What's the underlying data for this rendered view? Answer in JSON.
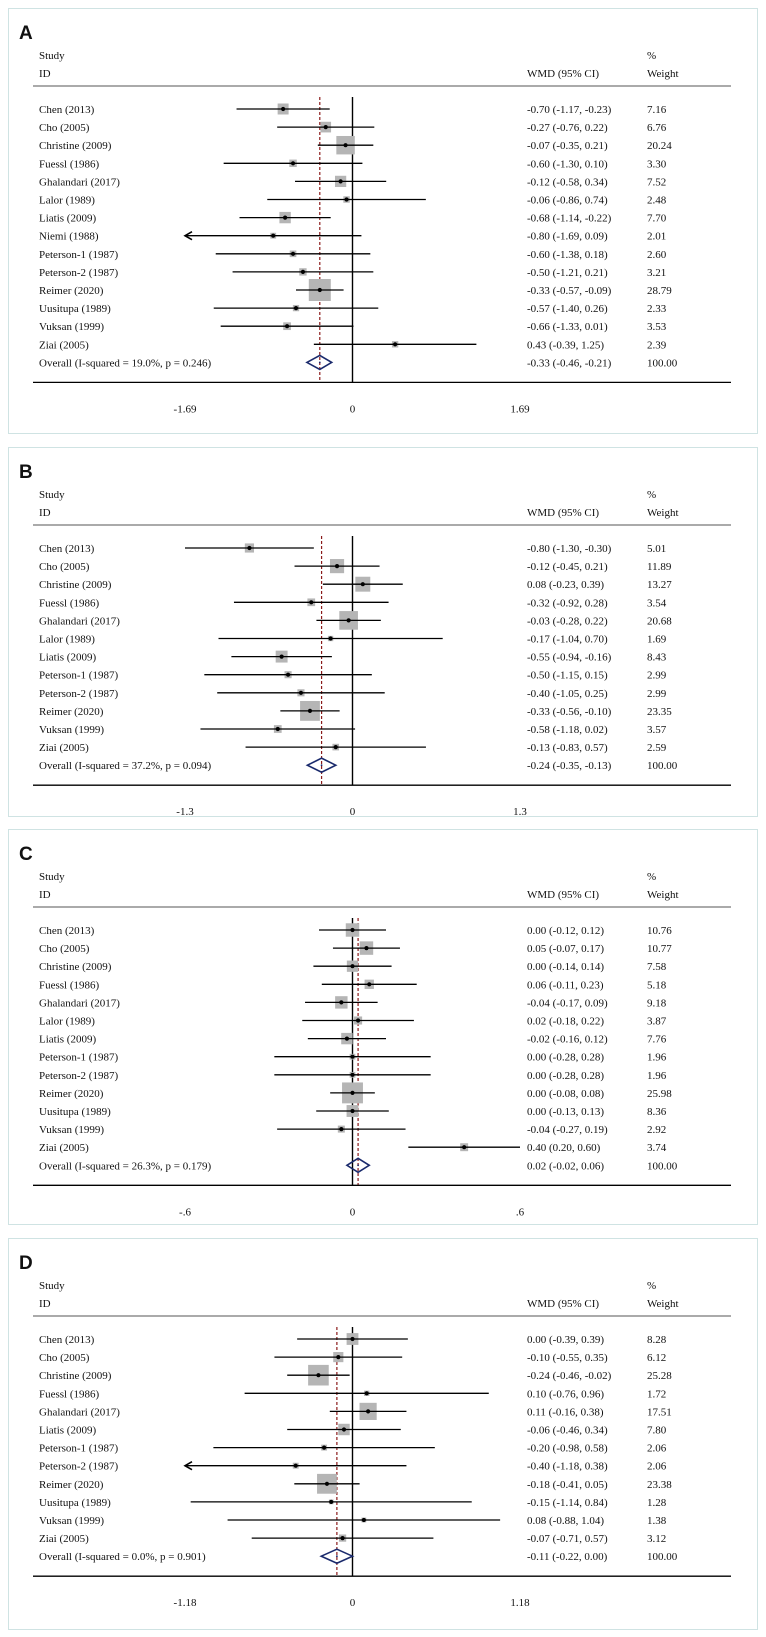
{
  "header": {
    "study_line1": "Study",
    "study_line2": "ID",
    "effect_header": "WMD (95% CI)",
    "weight_line1": "%",
    "weight_line2": "Weight"
  },
  "colors": {
    "box": "#b5b5b5",
    "line": "#000000",
    "diamond": "#1a2a6c",
    "null_line": "#000000",
    "overall_line": "#8b1a1a",
    "panel_border": "#cfe3e3"
  },
  "chart_data": [
    {
      "type": "forest",
      "panel_label": "A",
      "xlim": [
        -1.69,
        1.69
      ],
      "ticks": [
        "-1.69",
        "0",
        "1.69"
      ],
      "tick_values": [
        -1.69,
        0,
        1.69
      ],
      "studies": [
        {
          "id": "Chen (2013)",
          "est": -0.7,
          "lo": -1.17,
          "hi": -0.23,
          "ci": "-0.70 (-1.17, -0.23)",
          "weight": "7.16",
          "w": 7.16
        },
        {
          "id": "Cho (2005)",
          "est": -0.27,
          "lo": -0.76,
          "hi": 0.22,
          "ci": "-0.27 (-0.76, 0.22)",
          "weight": "6.76",
          "w": 6.76
        },
        {
          "id": "Christine (2009)",
          "est": -0.07,
          "lo": -0.35,
          "hi": 0.21,
          "ci": "-0.07 (-0.35, 0.21)",
          "weight": "20.24",
          "w": 20.24
        },
        {
          "id": "Fuessl (1986)",
          "est": -0.6,
          "lo": -1.3,
          "hi": 0.1,
          "ci": "-0.60 (-1.30, 0.10)",
          "weight": "3.30",
          "w": 3.3
        },
        {
          "id": "Ghalandari (2017)",
          "est": -0.12,
          "lo": -0.58,
          "hi": 0.34,
          "ci": "-0.12 (-0.58, 0.34)",
          "weight": "7.52",
          "w": 7.52
        },
        {
          "id": "Lalor (1989)",
          "est": -0.06,
          "lo": -0.86,
          "hi": 0.74,
          "ci": "-0.06 (-0.86, 0.74)",
          "weight": "2.48",
          "w": 2.48
        },
        {
          "id": "Liatis (2009)",
          "est": -0.68,
          "lo": -1.14,
          "hi": -0.22,
          "ci": "-0.68 (-1.14, -0.22)",
          "weight": "7.70",
          "w": 7.7
        },
        {
          "id": "Niemi (1988)",
          "est": -0.8,
          "lo": -1.69,
          "hi": 0.09,
          "ci": "-0.80 (-1.69, 0.09)",
          "weight": "2.01",
          "w": 2.01,
          "arrow_left": true
        },
        {
          "id": "Peterson-1 (1987)",
          "est": -0.6,
          "lo": -1.38,
          "hi": 0.18,
          "ci": "-0.60 (-1.38, 0.18)",
          "weight": "2.60",
          "w": 2.6
        },
        {
          "id": "Peterson-2 (1987)",
          "est": -0.5,
          "lo": -1.21,
          "hi": 0.21,
          "ci": "-0.50 (-1.21, 0.21)",
          "weight": "3.21",
          "w": 3.21
        },
        {
          "id": "Reimer (2020)",
          "est": -0.33,
          "lo": -0.57,
          "hi": -0.09,
          "ci": "-0.33 (-0.57, -0.09)",
          "weight": "28.79",
          "w": 28.79
        },
        {
          "id": "Uusitupa (1989)",
          "est": -0.57,
          "lo": -1.4,
          "hi": 0.26,
          "ci": "-0.57 (-1.40, 0.26)",
          "weight": "2.33",
          "w": 2.33
        },
        {
          "id": "Vuksan (1999)",
          "est": -0.66,
          "lo": -1.33,
          "hi": 0.01,
          "ci": "-0.66 (-1.33, 0.01)",
          "weight": "3.53",
          "w": 3.53
        },
        {
          "id": "Ziai (2005)",
          "est": 0.43,
          "lo": -0.39,
          "hi": 1.25,
          "ci": "0.43 (-0.39, 1.25)",
          "weight": "2.39",
          "w": 2.39
        }
      ],
      "overall": {
        "label": "Overall (I-squared = 19.0%, p = 0.246)",
        "est": -0.33,
        "lo": -0.46,
        "hi": -0.21,
        "ci": "-0.33 (-0.46, -0.21)",
        "weight": "100.00"
      }
    },
    {
      "type": "forest",
      "panel_label": "B",
      "xlim": [
        -1.3,
        1.3
      ],
      "ticks": [
        "-1.3",
        "0",
        "1.3"
      ],
      "tick_values": [
        -1.3,
        0,
        1.3
      ],
      "studies": [
        {
          "id": "Chen (2013)",
          "est": -0.8,
          "lo": -1.3,
          "hi": -0.3,
          "ci": "-0.80 (-1.30, -0.30)",
          "weight": "5.01",
          "w": 5.01
        },
        {
          "id": "Cho (2005)",
          "est": -0.12,
          "lo": -0.45,
          "hi": 0.21,
          "ci": "-0.12 (-0.45, 0.21)",
          "weight": "11.89",
          "w": 11.89
        },
        {
          "id": "Christine (2009)",
          "est": 0.08,
          "lo": -0.23,
          "hi": 0.39,
          "ci": "0.08 (-0.23, 0.39)",
          "weight": "13.27",
          "w": 13.27
        },
        {
          "id": "Fuessl (1986)",
          "est": -0.32,
          "lo": -0.92,
          "hi": 0.28,
          "ci": "-0.32 (-0.92, 0.28)",
          "weight": "3.54",
          "w": 3.54
        },
        {
          "id": "Ghalandari (2017)",
          "est": -0.03,
          "lo": -0.28,
          "hi": 0.22,
          "ci": "-0.03 (-0.28, 0.22)",
          "weight": "20.68",
          "w": 20.68
        },
        {
          "id": "Lalor (1989)",
          "est": -0.17,
          "lo": -1.04,
          "hi": 0.7,
          "ci": "-0.17 (-1.04, 0.70)",
          "weight": "1.69",
          "w": 1.69
        },
        {
          "id": "Liatis (2009)",
          "est": -0.55,
          "lo": -0.94,
          "hi": -0.16,
          "ci": "-0.55 (-0.94, -0.16)",
          "weight": "8.43",
          "w": 8.43
        },
        {
          "id": "Peterson-1 (1987)",
          "est": -0.5,
          "lo": -1.15,
          "hi": 0.15,
          "ci": "-0.50 (-1.15, 0.15)",
          "weight": "2.99",
          "w": 2.99
        },
        {
          "id": "Peterson-2 (1987)",
          "est": -0.4,
          "lo": -1.05,
          "hi": 0.25,
          "ci": "-0.40 (-1.05, 0.25)",
          "weight": "2.99",
          "w": 2.99
        },
        {
          "id": "Reimer (2020)",
          "est": -0.33,
          "lo": -0.56,
          "hi": -0.1,
          "ci": "-0.33 (-0.56, -0.10)",
          "weight": "23.35",
          "w": 23.35
        },
        {
          "id": "Vuksan (1999)",
          "est": -0.58,
          "lo": -1.18,
          "hi": 0.02,
          "ci": "-0.58 (-1.18, 0.02)",
          "weight": "3.57",
          "w": 3.57
        },
        {
          "id": "Ziai (2005)",
          "est": -0.13,
          "lo": -0.83,
          "hi": 0.57,
          "ci": "-0.13 (-0.83, 0.57)",
          "weight": "2.59",
          "w": 2.59
        }
      ],
      "overall": {
        "label": "Overall (I-squared = 37.2%, p = 0.094)",
        "est": -0.24,
        "lo": -0.35,
        "hi": -0.13,
        "ci": "-0.24 (-0.35, -0.13)",
        "weight": "100.00"
      }
    },
    {
      "type": "forest",
      "panel_label": "C",
      "xlim": [
        -0.6,
        0.6
      ],
      "ticks": [
        "-.6",
        "0",
        ".6"
      ],
      "tick_values": [
        -0.6,
        0,
        0.6
      ],
      "studies": [
        {
          "id": "Chen (2013)",
          "est": 0.0,
          "lo": -0.12,
          "hi": 0.12,
          "ci": "0.00 (-0.12, 0.12)",
          "weight": "10.76",
          "w": 10.76
        },
        {
          "id": "Cho (2005)",
          "est": 0.05,
          "lo": -0.07,
          "hi": 0.17,
          "ci": "0.05 (-0.07, 0.17)",
          "weight": "10.77",
          "w": 10.77
        },
        {
          "id": "Christine (2009)",
          "est": 0.0,
          "lo": -0.14,
          "hi": 0.14,
          "ci": "0.00 (-0.14, 0.14)",
          "weight": "7.58",
          "w": 7.58
        },
        {
          "id": "Fuessl (1986)",
          "est": 0.06,
          "lo": -0.11,
          "hi": 0.23,
          "ci": "0.06 (-0.11, 0.23)",
          "weight": "5.18",
          "w": 5.18
        },
        {
          "id": "Ghalandari (2017)",
          "est": -0.04,
          "lo": -0.17,
          "hi": 0.09,
          "ci": "-0.04 (-0.17, 0.09)",
          "weight": "9.18",
          "w": 9.18
        },
        {
          "id": "Lalor (1989)",
          "est": 0.02,
          "lo": -0.18,
          "hi": 0.22,
          "ci": "0.02 (-0.18, 0.22)",
          "weight": "3.87",
          "w": 3.87
        },
        {
          "id": "Liatis (2009)",
          "est": -0.02,
          "lo": -0.16,
          "hi": 0.12,
          "ci": "-0.02 (-0.16, 0.12)",
          "weight": "7.76",
          "w": 7.76
        },
        {
          "id": "Peterson-1 (1987)",
          "est": 0.0,
          "lo": -0.28,
          "hi": 0.28,
          "ci": "0.00 (-0.28, 0.28)",
          "weight": "1.96",
          "w": 1.96
        },
        {
          "id": "Peterson-2 (1987)",
          "est": 0.0,
          "lo": -0.28,
          "hi": 0.28,
          "ci": "0.00 (-0.28, 0.28)",
          "weight": "1.96",
          "w": 1.96
        },
        {
          "id": "Reimer (2020)",
          "est": 0.0,
          "lo": -0.08,
          "hi": 0.08,
          "ci": "0.00 (-0.08, 0.08)",
          "weight": "25.98",
          "w": 25.98
        },
        {
          "id": "Uusitupa (1989)",
          "est": 0.0,
          "lo": -0.13,
          "hi": 0.13,
          "ci": "0.00 (-0.13, 0.13)",
          "weight": "8.36",
          "w": 8.36
        },
        {
          "id": "Vuksan (1999)",
          "est": -0.04,
          "lo": -0.27,
          "hi": 0.19,
          "ci": "-0.04 (-0.27, 0.19)",
          "weight": "2.92",
          "w": 2.92
        },
        {
          "id": "Ziai (2005)",
          "est": 0.4,
          "lo": 0.2,
          "hi": 0.6,
          "ci": "0.40 (0.20, 0.60)",
          "weight": "3.74",
          "w": 3.74
        }
      ],
      "overall": {
        "label": "Overall (I-squared = 26.3%, p = 0.179)",
        "est": 0.02,
        "lo": -0.02,
        "hi": 0.06,
        "ci": "0.02 (-0.02, 0.06)",
        "weight": "100.00"
      }
    },
    {
      "type": "forest",
      "panel_label": "D",
      "xlim": [
        -1.18,
        1.18
      ],
      "ticks": [
        "-1.18",
        "0",
        "1.18"
      ],
      "tick_values": [
        -1.18,
        0,
        1.18
      ],
      "studies": [
        {
          "id": "Chen (2013)",
          "est": 0.0,
          "lo": -0.39,
          "hi": 0.39,
          "ci": "0.00 (-0.39, 0.39)",
          "weight": "8.28",
          "w": 8.28
        },
        {
          "id": "Cho (2005)",
          "est": -0.1,
          "lo": -0.55,
          "hi": 0.35,
          "ci": "-0.10 (-0.55, 0.35)",
          "weight": "6.12",
          "w": 6.12
        },
        {
          "id": "Christine (2009)",
          "est": -0.24,
          "lo": -0.46,
          "hi": -0.02,
          "ci": "-0.24 (-0.46, -0.02)",
          "weight": "25.28",
          "w": 25.28
        },
        {
          "id": "Fuessl (1986)",
          "est": 0.1,
          "lo": -0.76,
          "hi": 0.96,
          "ci": "0.10 (-0.76, 0.96)",
          "weight": "1.72",
          "w": 1.72
        },
        {
          "id": "Ghalandari (2017)",
          "est": 0.11,
          "lo": -0.16,
          "hi": 0.38,
          "ci": "0.11 (-0.16, 0.38)",
          "weight": "17.51",
          "w": 17.51
        },
        {
          "id": "Liatis (2009)",
          "est": -0.06,
          "lo": -0.46,
          "hi": 0.34,
          "ci": "-0.06 (-0.46, 0.34)",
          "weight": "7.80",
          "w": 7.8
        },
        {
          "id": "Peterson-1 (1987)",
          "est": -0.2,
          "lo": -0.98,
          "hi": 0.58,
          "ci": "-0.20 (-0.98, 0.58)",
          "weight": "2.06",
          "w": 2.06
        },
        {
          "id": "Peterson-2 (1987)",
          "est": -0.4,
          "lo": -1.18,
          "hi": 0.38,
          "ci": "-0.40 (-1.18, 0.38)",
          "weight": "2.06",
          "w": 2.06,
          "arrow_left": true
        },
        {
          "id": "Reimer (2020)",
          "est": -0.18,
          "lo": -0.41,
          "hi": 0.05,
          "ci": "-0.18 (-0.41, 0.05)",
          "weight": "23.38",
          "w": 23.38
        },
        {
          "id": "Uusitupa (1989)",
          "est": -0.15,
          "lo": -1.14,
          "hi": 0.84,
          "ci": "-0.15 (-1.14, 0.84)",
          "weight": "1.28",
          "w": 1.28
        },
        {
          "id": "Vuksan (1999)",
          "est": 0.08,
          "lo": -0.88,
          "hi": 1.04,
          "ci": "0.08 (-0.88, 1.04)",
          "weight": "1.38",
          "w": 1.38
        },
        {
          "id": "Ziai (2005)",
          "est": -0.07,
          "lo": -0.71,
          "hi": 0.57,
          "ci": "-0.07 (-0.71, 0.57)",
          "weight": "3.12",
          "w": 3.12
        }
      ],
      "overall": {
        "label": "Overall (I-squared = 0.0%, p = 0.901)",
        "est": -0.11,
        "lo": -0.22,
        "hi": 0.0,
        "ci": "-0.11 (-0.22, 0.00)",
        "weight": "100.00"
      }
    }
  ]
}
